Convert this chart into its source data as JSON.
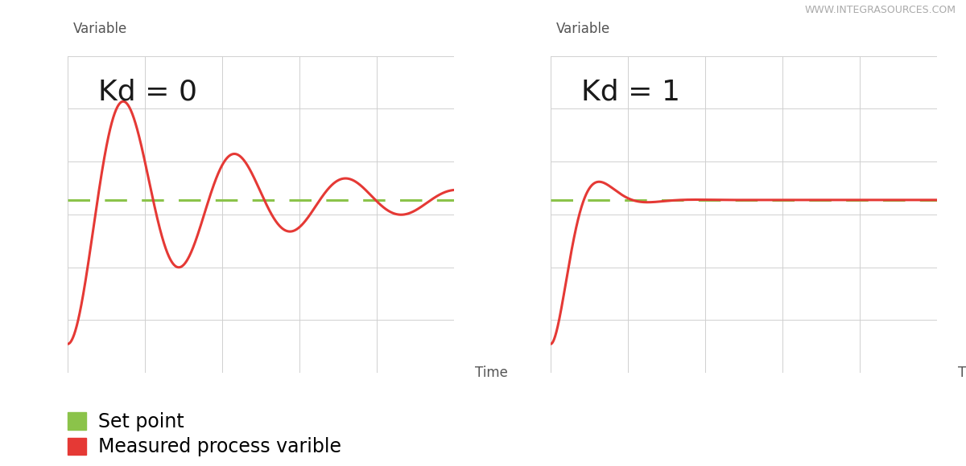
{
  "background_color": "#ffffff",
  "plot_bg_color": "#ffffff",
  "grid_color": "#d0d0d0",
  "axis_color": "#555555",
  "setpoint_color": "#8bc34a",
  "measured_color": "#e53935",
  "setpoint_value": 0.5,
  "title1": "Kd = 0",
  "title2": "Kd = 1",
  "ylabel": "Variable",
  "xlabel": "Time",
  "legend_setpoint": "Set point",
  "legend_measured": "Measured process varible",
  "watermark": "WWW.INTEGRASOURCES.COM",
  "title_fontsize": 26,
  "label_fontsize": 12,
  "legend_fontsize": 17,
  "watermark_fontsize": 9
}
